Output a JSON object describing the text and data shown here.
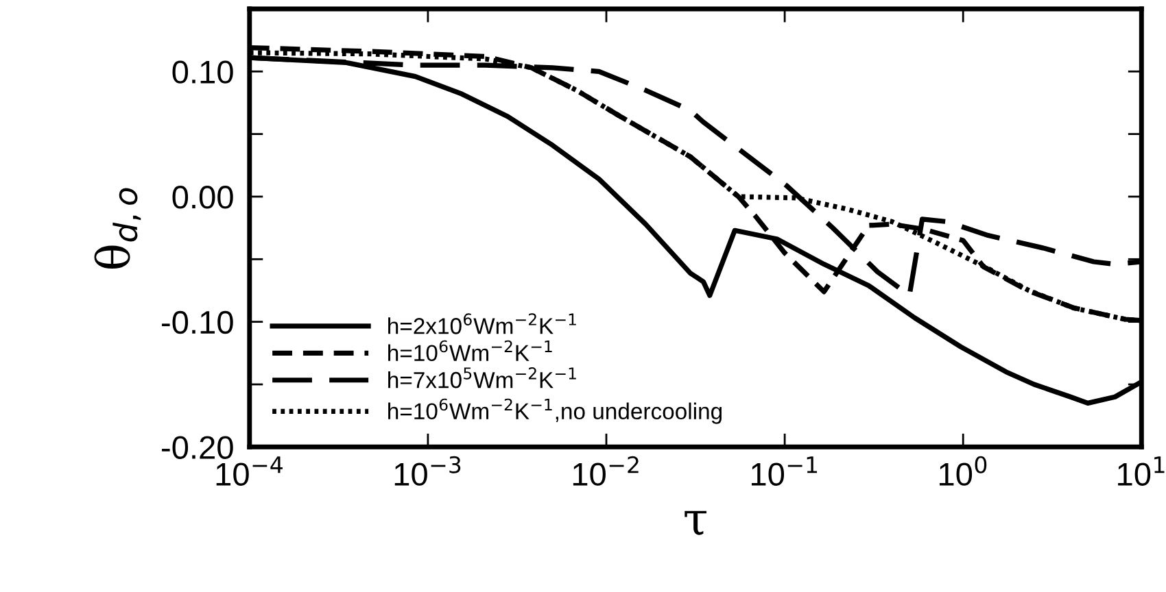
{
  "chart_data": {
    "type": "line",
    "xlabel": "τ",
    "ylabel": "θ$_{d,o}$",
    "log": "x",
    "grid": false,
    "legend": "bottom left",
    "marker": "none",
    "xlim": [
      0.0001,
      10
    ],
    "xticks": [
      {
        "value": 0.0001,
        "label": "10$^{−4}$"
      },
      {
        "value": 0.001,
        "label": "10$^{−3}$"
      },
      {
        "value": 0.01,
        "label": "10$^{−2}$"
      },
      {
        "value": 0.1,
        "label": "10$^{−1}$"
      },
      {
        "value": 1,
        "label": "10$^{0}$"
      },
      {
        "value": 10,
        "label": "10$^{1}$"
      }
    ],
    "ylim": [
      -0.2,
      0.15
    ],
    "yticks": [
      {
        "value": -0.2,
        "label": "-0.20"
      },
      {
        "value": -0.15,
        "label": null
      },
      {
        "value": -0.1,
        "label": "-0.10"
      },
      {
        "value": -0.05,
        "label": null
      },
      {
        "value": 0,
        "label": "0.00"
      },
      {
        "value": 0.05,
        "label": null
      },
      {
        "value": 0.1,
        "label": "0.10"
      },
      {
        "value": 0.15,
        "label": null
      }
    ],
    "series": [
      {
        "name": "h=2x10$^{6}$Wm$^{−2}$K$^{−1}$",
        "color": "#000000",
        "line_style": "solid",
        "x": [
          0.0001,
          0.00035,
          0.00085,
          0.00155,
          0.0028,
          0.005,
          0.0091,
          0.0166,
          0.0295,
          0.035,
          0.038,
          0.0525,
          0.091,
          0.166,
          0.295,
          0.537,
          0.97,
          1.74,
          2.5,
          4.0,
          5.0,
          7.1,
          10
        ],
        "values": [
          0.111,
          0.107,
          0.096,
          0.082,
          0.064,
          0.041,
          0.014,
          -0.022,
          -0.061,
          -0.068,
          -0.079,
          -0.027,
          -0.034,
          -0.054,
          -0.071,
          -0.097,
          -0.12,
          -0.14,
          -0.15,
          -0.16,
          -0.165,
          -0.16,
          -0.148
        ]
      },
      {
        "name": "h=10$^{6}$Wm$^{−2}$K$^{−1}$",
        "color": "#000000",
        "line_style": "dashed",
        "x": [
          0.0001,
          0.00048,
          0.0021,
          0.0038,
          0.0068,
          0.012,
          0.0295,
          0.055,
          0.068,
          0.1,
          0.166,
          0.295,
          0.4,
          0.6,
          1.0,
          1.3,
          2.3,
          4.2,
          8.1,
          10
        ],
        "values": [
          0.119,
          0.116,
          0.112,
          0.103,
          0.085,
          0.064,
          0.032,
          0.0,
          -0.015,
          -0.045,
          -0.076,
          -0.023,
          -0.022,
          -0.026,
          -0.035,
          -0.056,
          -0.075,
          -0.089,
          -0.098,
          -0.099
        ]
      },
      {
        "name": "h=7x10$^{5}$Wm$^{−2}$K$^{−1}$",
        "color": "#000000",
        "line_style": "longdash",
        "x": [
          0.0001,
          0.00085,
          0.0021,
          0.005,
          0.0091,
          0.0166,
          0.0295,
          0.0347,
          0.102,
          0.186,
          0.331,
          0.5,
          0.59,
          0.81,
          1.38,
          2.8,
          5.4,
          7.1,
          10
        ],
        "values": [
          0.111,
          0.105,
          0.105,
          0.103,
          0.1,
          0.085,
          0.069,
          0.06,
          0.009,
          -0.025,
          -0.06,
          -0.079,
          -0.018,
          -0.02,
          -0.031,
          -0.041,
          -0.052,
          -0.054,
          -0.052
        ]
      },
      {
        "name": "h=10$^{6}$Wm$^{−2}$K$^{−1}$,no undercooling",
        "color": "#000000",
        "line_style": "dotted",
        "x": [
          0.0001,
          0.00048,
          0.0021,
          0.0038,
          0.0068,
          0.012,
          0.0295,
          0.055,
          0.115,
          0.224,
          0.4,
          0.71,
          1.32,
          2.34,
          4.17,
          8.1,
          10
        ],
        "values": [
          0.115,
          0.114,
          0.11,
          0.103,
          0.085,
          0.064,
          0.032,
          0.0,
          -0.001,
          -0.01,
          -0.02,
          -0.037,
          -0.056,
          -0.075,
          -0.089,
          -0.098,
          -0.099
        ]
      }
    ]
  }
}
